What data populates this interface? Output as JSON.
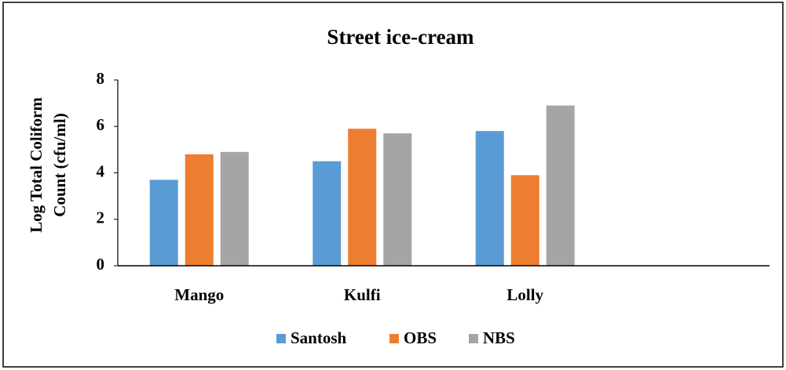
{
  "chart_data": {
    "type": "bar",
    "title": "Street ice-cream",
    "y_label": [
      "Log Total Coliform",
      "Count (cfu/ml)"
    ],
    "categories": [
      "Mango",
      "Kulfi",
      "Lolly",
      null
    ],
    "series": [
      {
        "name": "Santosh",
        "color": "#5b9bd5",
        "values": [
          3.7,
          4.5,
          5.8,
          null
        ]
      },
      {
        "name": "OBS",
        "color": "#ed7d31",
        "values": [
          4.8,
          5.9,
          3.9,
          null
        ]
      },
      {
        "name": "NBS",
        "color": "#a5a5a5",
        "values": [
          4.9,
          5.7,
          6.9,
          null
        ]
      }
    ],
    "ylim": [
      0,
      8
    ],
    "yticks": [
      0,
      2,
      4,
      6,
      8
    ],
    "grid": false,
    "legend": "bottom"
  }
}
